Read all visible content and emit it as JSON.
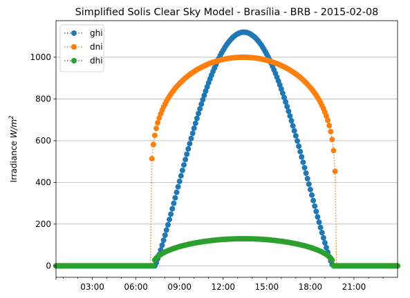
{
  "chart_data": {
    "type": "line",
    "title": "Simplified Solis Clear Sky Model - Brasília - BRB - 2015-02-08",
    "xlabel": "",
    "ylabel": "Irradiance W/m²",
    "ylabel_parts": {
      "base": "Irradiance ",
      "unit": "W/m",
      "sup": "2"
    },
    "xlim": [
      0.5,
      24
    ],
    "ylim": [
      -55,
      1175
    ],
    "x_ticks": [
      {
        "value": 3,
        "label": "03:00"
      },
      {
        "value": 6,
        "label": "06:00"
      },
      {
        "value": 9,
        "label": "09:00"
      },
      {
        "value": 12,
        "label": "12:00"
      },
      {
        "value": 15,
        "label": "15:00"
      },
      {
        "value": 18,
        "label": "18:00"
      },
      {
        "value": 21,
        "label": "21:00"
      }
    ],
    "y_ticks": [
      {
        "value": 0,
        "label": "0"
      },
      {
        "value": 200,
        "label": "200"
      },
      {
        "value": 400,
        "label": "400"
      },
      {
        "value": 600,
        "label": "600"
      },
      {
        "value": 800,
        "label": "800"
      },
      {
        "value": 1000,
        "label": "1000"
      }
    ],
    "grid": "horizontal",
    "legend_placement": "top-left",
    "series": [
      {
        "name": "ghi",
        "color": "#1f77b4",
        "peak": 1120,
        "rise": 7.3,
        "set": 19.55,
        "exponent": 1.18
      },
      {
        "name": "dni",
        "color": "#ff7f0e",
        "peak": 1000,
        "rise": 7.0,
        "set": 19.75,
        "exponent": 0.18
      },
      {
        "name": "dhi",
        "color": "#2ca02c",
        "peak": 130,
        "rise": 7.2,
        "set": 19.6,
        "exponent": 0.42
      }
    ],
    "x_start": 0.5,
    "x_end": 24,
    "x_step": 0.1
  }
}
